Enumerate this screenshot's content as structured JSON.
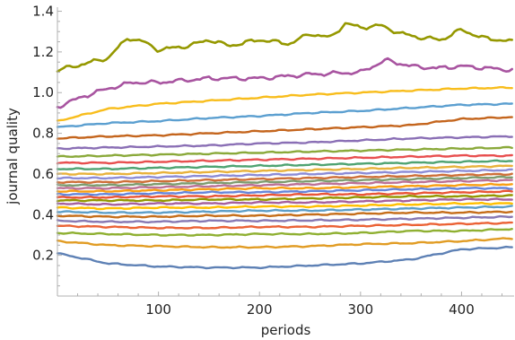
{
  "chart_data": {
    "type": "line",
    "title": "",
    "xlabel": "periods",
    "ylabel": "journal quality",
    "xlim": [
      0,
      452
    ],
    "ylim": [
      0,
      1.42
    ],
    "xticks": [
      100,
      200,
      300,
      400
    ],
    "xtick_labels": [
      "100",
      "200",
      "300",
      "400"
    ],
    "yticks": [
      0.2,
      0.4,
      0.6,
      0.8,
      1.0,
      1.2,
      1.4
    ],
    "ytick_labels": [
      "0.2",
      "0.4",
      "0.6",
      "0.8",
      "1.0",
      "1.2",
      "1.4"
    ],
    "grid": false,
    "legend": "none",
    "series": [
      {
        "color": "#5e81b5",
        "x": [
          0,
          50,
          100,
          150,
          200,
          250,
          300,
          350,
          400,
          452
        ],
        "values": [
          0.21,
          0.16,
          0.145,
          0.14,
          0.14,
          0.15,
          0.16,
          0.18,
          0.23,
          0.24
        ]
      },
      {
        "color": "#e19c24",
        "x": [
          0,
          50,
          100,
          150,
          200,
          250,
          300,
          350,
          400,
          452
        ],
        "values": [
          0.27,
          0.25,
          0.245,
          0.24,
          0.24,
          0.245,
          0.255,
          0.26,
          0.27,
          0.285
        ]
      },
      {
        "color": "#8fb032",
        "x": [
          0,
          50,
          100,
          150,
          200,
          250,
          300,
          350,
          400,
          452
        ],
        "values": [
          0.31,
          0.305,
          0.3,
          0.3,
          0.305,
          0.305,
          0.31,
          0.32,
          0.32,
          0.33
        ]
      },
      {
        "color": "#eb6235",
        "x": [
          0,
          50,
          100,
          150,
          200,
          250,
          300,
          350,
          400,
          452
        ],
        "values": [
          0.345,
          0.34,
          0.335,
          0.335,
          0.34,
          0.34,
          0.345,
          0.35,
          0.355,
          0.36
        ]
      },
      {
        "color": "#8778b3",
        "x": [
          0,
          50,
          100,
          150,
          200,
          250,
          300,
          350,
          400,
          452
        ],
        "values": [
          0.37,
          0.365,
          0.365,
          0.37,
          0.37,
          0.372,
          0.375,
          0.38,
          0.385,
          0.39
        ]
      },
      {
        "color": "#c56e1a",
        "x": [
          0,
          50,
          100,
          150,
          200,
          250,
          300,
          350,
          400,
          452
        ],
        "values": [
          0.395,
          0.39,
          0.39,
          0.395,
          0.395,
          0.4,
          0.405,
          0.41,
          0.41,
          0.415
        ]
      },
      {
        "color": "#5d9ec7",
        "x": [
          0,
          50,
          100,
          150,
          200,
          250,
          300,
          350,
          400,
          452
        ],
        "values": [
          0.415,
          0.41,
          0.41,
          0.415,
          0.42,
          0.42,
          0.425,
          0.43,
          0.435,
          0.44
        ]
      },
      {
        "color": "#ffbf00",
        "x": [
          0,
          50,
          100,
          150,
          200,
          250,
          300,
          350,
          400,
          452
        ],
        "values": [
          0.435,
          0.43,
          0.435,
          0.435,
          0.44,
          0.44,
          0.445,
          0.45,
          0.455,
          0.455
        ]
      },
      {
        "color": "#a5609d",
        "x": [
          0,
          50,
          100,
          150,
          200,
          250,
          300,
          350,
          400,
          452
        ],
        "values": [
          0.455,
          0.45,
          0.455,
          0.455,
          0.46,
          0.46,
          0.465,
          0.47,
          0.475,
          0.475
        ]
      },
      {
        "color": "#929600",
        "x": [
          0,
          50,
          100,
          150,
          200,
          250,
          300,
          350,
          400,
          452
        ],
        "values": [
          0.47,
          0.47,
          0.47,
          0.475,
          0.475,
          0.48,
          0.485,
          0.49,
          0.49,
          0.495
        ]
      },
      {
        "color": "#e95536",
        "x": [
          0,
          50,
          100,
          150,
          200,
          250,
          300,
          350,
          400,
          452
        ],
        "values": [
          0.485,
          0.485,
          0.49,
          0.49,
          0.495,
          0.5,
          0.5,
          0.505,
          0.51,
          0.515
        ]
      },
      {
        "color": "#6685d9",
        "x": [
          0,
          50,
          100,
          150,
          200,
          250,
          300,
          350,
          400,
          452
        ],
        "values": [
          0.5,
          0.5,
          0.505,
          0.51,
          0.51,
          0.515,
          0.52,
          0.525,
          0.53,
          0.53
        ]
      },
      {
        "color": "#f89f13",
        "x": [
          0,
          50,
          100,
          150,
          200,
          250,
          300,
          350,
          400,
          452
        ],
        "values": [
          0.515,
          0.515,
          0.52,
          0.525,
          0.53,
          0.53,
          0.535,
          0.54,
          0.545,
          0.55
        ]
      },
      {
        "color": "#bc7196",
        "x": [
          0,
          50,
          100,
          150,
          200,
          250,
          300,
          350,
          400,
          452
        ],
        "values": [
          0.53,
          0.53,
          0.535,
          0.54,
          0.545,
          0.55,
          0.555,
          0.56,
          0.565,
          0.57
        ]
      },
      {
        "color": "#7e9c6f",
        "x": [
          0,
          50,
          100,
          150,
          200,
          250,
          300,
          350,
          400,
          452
        ],
        "values": [
          0.545,
          0.545,
          0.55,
          0.555,
          0.56,
          0.565,
          0.57,
          0.575,
          0.58,
          0.585
        ]
      },
      {
        "color": "#ce6f38",
        "x": [
          0,
          50,
          100,
          150,
          200,
          250,
          300,
          350,
          400,
          452
        ],
        "values": [
          0.56,
          0.56,
          0.565,
          0.57,
          0.575,
          0.58,
          0.585,
          0.59,
          0.595,
          0.6
        ]
      },
      {
        "color": "#8c8cd6",
        "x": [
          0,
          50,
          100,
          150,
          200,
          250,
          300,
          350,
          400,
          452
        ],
        "values": [
          0.58,
          0.58,
          0.585,
          0.59,
          0.595,
          0.6,
          0.605,
          0.61,
          0.615,
          0.62
        ]
      },
      {
        "color": "#e8b23c",
        "x": [
          0,
          50,
          100,
          150,
          200,
          250,
          300,
          350,
          400,
          452
        ],
        "values": [
          0.6,
          0.6,
          0.605,
          0.61,
          0.615,
          0.62,
          0.625,
          0.63,
          0.635,
          0.64
        ]
      },
      {
        "color": "#4fa372",
        "x": [
          0,
          50,
          100,
          150,
          200,
          250,
          300,
          350,
          400,
          452
        ],
        "values": [
          0.625,
          0.625,
          0.63,
          0.635,
          0.64,
          0.645,
          0.65,
          0.655,
          0.66,
          0.665
        ]
      },
      {
        "color": "#e84f4f",
        "x": [
          0,
          50,
          100,
          150,
          200,
          250,
          300,
          350,
          400,
          452
        ],
        "values": [
          0.655,
          0.655,
          0.66,
          0.665,
          0.67,
          0.675,
          0.68,
          0.685,
          0.69,
          0.69
        ]
      },
      {
        "color": "#8aa93a",
        "x": [
          0,
          50,
          100,
          150,
          200,
          250,
          300,
          350,
          400,
          452
        ],
        "values": [
          0.685,
          0.69,
          0.695,
          0.7,
          0.705,
          0.71,
          0.715,
          0.72,
          0.725,
          0.73
        ]
      },
      {
        "color": "#8a6fb5",
        "x": [
          0,
          50,
          100,
          150,
          200,
          250,
          300,
          350,
          400,
          452
        ],
        "values": [
          0.725,
          0.73,
          0.735,
          0.74,
          0.75,
          0.755,
          0.765,
          0.775,
          0.78,
          0.785
        ]
      },
      {
        "color": "#c4651d",
        "x": [
          0,
          50,
          100,
          150,
          200,
          250,
          300,
          350,
          400,
          452
        ],
        "values": [
          0.775,
          0.785,
          0.79,
          0.8,
          0.81,
          0.82,
          0.83,
          0.84,
          0.87,
          0.88
        ]
      },
      {
        "color": "#5b9fd0",
        "x": [
          0,
          50,
          100,
          150,
          200,
          250,
          300,
          350,
          400,
          452
        ],
        "values": [
          0.83,
          0.85,
          0.86,
          0.875,
          0.885,
          0.9,
          0.91,
          0.925,
          0.94,
          0.945
        ]
      },
      {
        "color": "#f8bd1c",
        "x": [
          0,
          50,
          100,
          150,
          200,
          250,
          300,
          350,
          400,
          452
        ],
        "values": [
          0.86,
          0.92,
          0.945,
          0.96,
          0.975,
          0.99,
          1.0,
          1.01,
          1.02,
          1.025
        ]
      },
      {
        "color": "#a854a0",
        "x": [
          0,
          25,
          50,
          75,
          100,
          150,
          200,
          250,
          300,
          325,
          350,
          375,
          400,
          452
        ],
        "values": [
          0.93,
          0.98,
          1.02,
          1.05,
          1.05,
          1.07,
          1.07,
          1.09,
          1.1,
          1.16,
          1.13,
          1.12,
          1.13,
          1.11
        ]
      },
      {
        "color": "#959800",
        "x": [
          0,
          25,
          50,
          70,
          85,
          100,
          130,
          150,
          170,
          200,
          230,
          250,
          270,
          285,
          300,
          320,
          340,
          360,
          380,
          400,
          420,
          452
        ],
        "values": [
          1.11,
          1.14,
          1.17,
          1.27,
          1.25,
          1.21,
          1.23,
          1.26,
          1.23,
          1.26,
          1.24,
          1.29,
          1.27,
          1.34,
          1.32,
          1.33,
          1.29,
          1.27,
          1.26,
          1.31,
          1.27,
          1.25
        ]
      }
    ]
  }
}
